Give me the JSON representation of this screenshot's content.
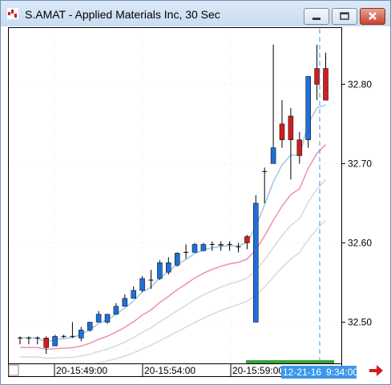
{
  "window": {
    "title": "S.AMAT - Applied Materials Inc, 30 Sec"
  },
  "icons": {
    "app": "chart-app-icon",
    "minimize": "minimize-icon",
    "maximize": "maximize-icon",
    "close": "close-icon",
    "scroll_right": "red-arrow-right-icon"
  },
  "colors": {
    "up_candle": "#1f6fd6",
    "down_candle": "#cc1f1f",
    "ma_blue": "#9ec5e8",
    "ma_pink": "#f08fae",
    "ma_gray": "#d9d9d9",
    "cursor": "#3b97ea",
    "volume": "#3aa13a"
  },
  "status": {
    "date": "12-21-16",
    "time": "9:34:00"
  },
  "chart_data": {
    "type": "candlestick",
    "y_ticks": [
      "32.80",
      "32.70",
      "32.60",
      "32.50"
    ],
    "x_ticks": [
      "20-15:49:00",
      "20-15:54:00",
      "20-15:59:00"
    ],
    "ylim": [
      32.45,
      32.87
    ],
    "candles": [
      {
        "o": 32.48,
        "h": 32.482,
        "l": 32.472,
        "c": 32.48,
        "d": "flat"
      },
      {
        "o": 32.48,
        "h": 32.482,
        "l": 32.472,
        "c": 32.48,
        "d": "flat"
      },
      {
        "o": 32.48,
        "h": 32.482,
        "l": 32.472,
        "c": 32.48,
        "d": "flat"
      },
      {
        "o": 32.48,
        "h": 32.482,
        "l": 32.46,
        "c": 32.468,
        "d": "down"
      },
      {
        "o": 32.47,
        "h": 32.484,
        "l": 32.47,
        "c": 32.482,
        "d": "up"
      },
      {
        "o": 32.48,
        "h": 32.484,
        "l": 32.48,
        "c": 32.482,
        "d": "flat"
      },
      {
        "o": 32.48,
        "h": 32.5,
        "l": 32.48,
        "c": 32.482,
        "d": "flat"
      },
      {
        "o": 32.48,
        "h": 32.494,
        "l": 32.476,
        "c": 32.49,
        "d": "up"
      },
      {
        "o": 32.49,
        "h": 32.5,
        "l": 32.488,
        "c": 32.5,
        "d": "up"
      },
      {
        "o": 32.5,
        "h": 32.514,
        "l": 32.5,
        "c": 32.51,
        "d": "up"
      },
      {
        "o": 32.5,
        "h": 32.51,
        "l": 32.498,
        "c": 32.51,
        "d": "up"
      },
      {
        "o": 32.51,
        "h": 32.524,
        "l": 32.51,
        "c": 32.52,
        "d": "up"
      },
      {
        "o": 32.52,
        "h": 32.535,
        "l": 32.52,
        "c": 32.53,
        "d": "up"
      },
      {
        "o": 32.53,
        "h": 32.545,
        "l": 32.53,
        "c": 32.54,
        "d": "up"
      },
      {
        "o": 32.54,
        "h": 32.558,
        "l": 32.538,
        "c": 32.555,
        "d": "up"
      },
      {
        "o": 32.55,
        "h": 32.566,
        "l": 32.542,
        "c": 32.553,
        "d": "flat"
      },
      {
        "o": 32.555,
        "h": 32.578,
        "l": 32.553,
        "c": 32.575,
        "d": "up"
      },
      {
        "o": 32.563,
        "h": 32.582,
        "l": 32.56,
        "c": 32.575,
        "d": "up"
      },
      {
        "o": 32.572,
        "h": 32.588,
        "l": 32.57,
        "c": 32.587,
        "d": "up"
      },
      {
        "o": 32.582,
        "h": 32.598,
        "l": 32.58,
        "c": 32.588,
        "d": "flat"
      },
      {
        "o": 32.588,
        "h": 32.6,
        "l": 32.588,
        "c": 32.598,
        "d": "up"
      },
      {
        "o": 32.59,
        "h": 32.6,
        "l": 32.59,
        "c": 32.598,
        "d": "up"
      },
      {
        "o": 32.598,
        "h": 32.602,
        "l": 32.59,
        "c": 32.598,
        "d": "flat"
      },
      {
        "o": 32.598,
        "h": 32.602,
        "l": 32.59,
        "c": 32.598,
        "d": "up"
      },
      {
        "o": 32.598,
        "h": 32.602,
        "l": 32.59,
        "c": 32.598,
        "d": "flat"
      },
      {
        "o": 32.598,
        "h": 32.6,
        "l": 32.588,
        "c": 32.595,
        "d": "flat"
      },
      {
        "o": 32.6,
        "h": 32.61,
        "l": 32.592,
        "c": 32.608,
        "d": "down"
      },
      {
        "o": 32.5,
        "h": 32.66,
        "l": 32.5,
        "c": 32.65,
        "d": "up"
      },
      {
        "o": 32.69,
        "h": 32.695,
        "l": 32.65,
        "c": 32.69,
        "d": "flat"
      },
      {
        "o": 32.7,
        "h": 32.85,
        "l": 32.7,
        "c": 32.72,
        "d": "up"
      },
      {
        "o": 32.75,
        "h": 32.78,
        "l": 32.72,
        "c": 32.73,
        "d": "down"
      },
      {
        "o": 32.76,
        "h": 32.77,
        "l": 32.68,
        "c": 32.73,
        "d": "down"
      },
      {
        "o": 32.73,
        "h": 32.74,
        "l": 32.7,
        "c": 32.71,
        "d": "down"
      },
      {
        "o": 32.73,
        "h": 32.81,
        "l": 32.72,
        "c": 32.81,
        "d": "up"
      },
      {
        "o": 32.82,
        "h": 32.85,
        "l": 32.78,
        "c": 32.8,
        "d": "down"
      },
      {
        "o": 32.82,
        "h": 32.84,
        "l": 32.78,
        "c": 32.78,
        "d": "down"
      }
    ]
  }
}
